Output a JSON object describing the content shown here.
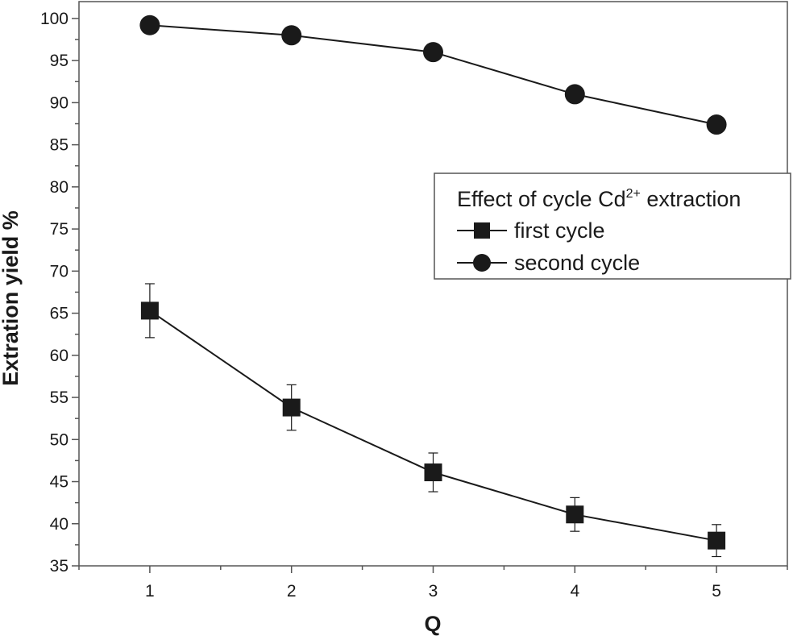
{
  "chart_data": {
    "type": "line",
    "xlabel": "Q",
    "ylabel": "Extration yield %",
    "x": [
      1,
      2,
      3,
      4,
      5
    ],
    "xlim": [
      0.5,
      5.5
    ],
    "ylim": [
      35,
      102
    ],
    "xticks": [
      1,
      2,
      3,
      4,
      5
    ],
    "yticks": [
      35,
      40,
      45,
      50,
      55,
      60,
      65,
      70,
      75,
      80,
      85,
      90,
      95,
      100
    ],
    "grid": false,
    "legend": {
      "title_prefix": "Effect of cycle   Cd",
      "title_sup": "2+",
      "title_suffix": " extraction",
      "placement": "right"
    },
    "series": [
      {
        "name": "first cycle",
        "marker": "square",
        "values": [
          65.3,
          53.8,
          46.1,
          41.1,
          38.0
        ],
        "errors": [
          3.2,
          2.7,
          2.3,
          2.0,
          1.9
        ]
      },
      {
        "name": "second cycle",
        "marker": "circle",
        "values": [
          99.2,
          98.0,
          96.0,
          91.0,
          87.4
        ]
      }
    ]
  }
}
